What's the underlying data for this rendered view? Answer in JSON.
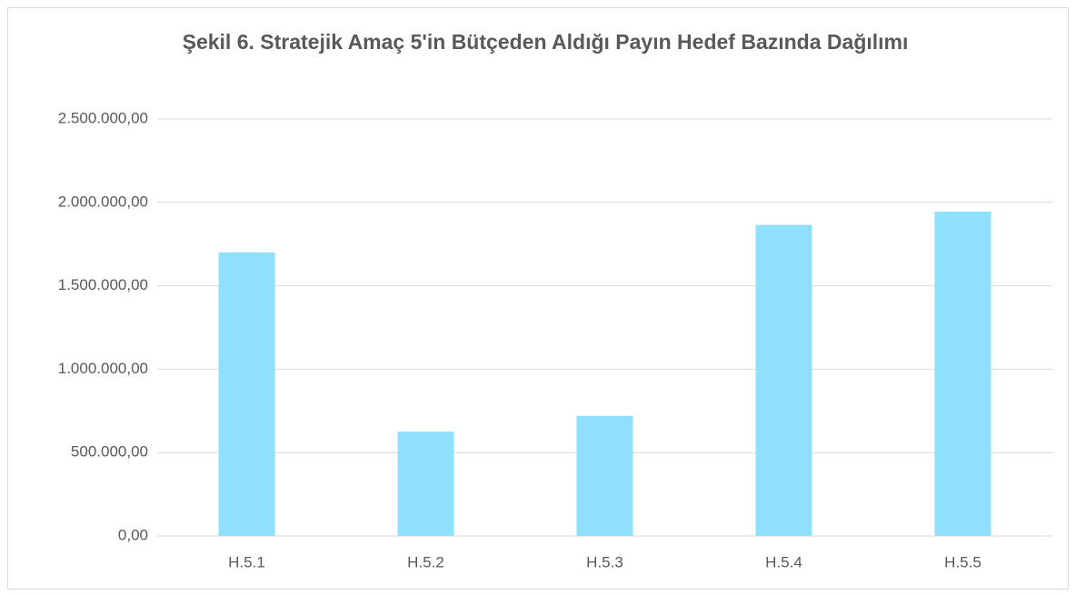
{
  "chart_data": {
    "type": "bar",
    "title": "Şekil 6. Stratejik Amaç 5'in Bütçeden Aldığı Payın Hedef Bazında Dağılımı",
    "categories": [
      "H.5.1",
      "H.5.2",
      "H.5.3",
      "H.5.4",
      "H.5.5"
    ],
    "values": [
      1700000,
      625000,
      720000,
      1865000,
      1945000
    ],
    "color": "#8ee0fd",
    "ylim": [
      0,
      2500000
    ],
    "yticks": [
      {
        "value": 0,
        "label": "0,00"
      },
      {
        "value": 500000,
        "label": "500.000,00"
      },
      {
        "value": 1000000,
        "label": "1.000.000,00"
      },
      {
        "value": 1500000,
        "label": "1.500.000,00"
      },
      {
        "value": 2000000,
        "label": "2.000.000,00"
      },
      {
        "value": 2500000,
        "label": "2.500.000,00"
      }
    ],
    "grid": true
  }
}
